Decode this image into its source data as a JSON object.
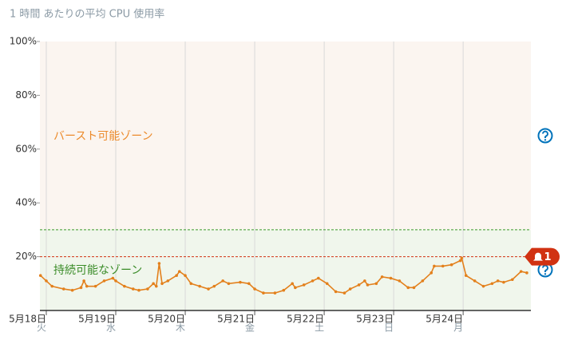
{
  "chart_data": {
    "type": "line",
    "title": "1 時間 あたりの平均 CPU 使用率",
    "series": [
      {
        "name": null,
        "color": "#e3801c",
        "x": [
          -2,
          0,
          2,
          6,
          9,
          12,
          13,
          14,
          17,
          20,
          23,
          24,
          27,
          30,
          32,
          35,
          37,
          38,
          39,
          40,
          42,
          45,
          46,
          48,
          50,
          53,
          56,
          58,
          61,
          63,
          67,
          70,
          72,
          75,
          79,
          82,
          85,
          86,
          89,
          92,
          94,
          97,
          100,
          103,
          105,
          108,
          110,
          111,
          114,
          116,
          119,
          122,
          125,
          127,
          130,
          133,
          134,
          137,
          140,
          143,
          143.5,
          145,
          148,
          151,
          154,
          156,
          158,
          161,
          164,
          166
        ],
        "values": [
          13,
          11,
          9,
          8,
          7.5,
          8.5,
          11,
          9,
          9,
          11,
          12,
          11,
          9,
          8,
          7.5,
          8,
          10,
          9,
          17.5,
          10,
          11,
          13,
          14.5,
          13,
          10,
          9,
          8,
          9,
          11,
          10,
          10.5,
          10,
          8,
          6.5,
          6.5,
          7.5,
          10,
          8.5,
          9.5,
          11,
          12,
          10,
          7,
          6.5,
          8,
          9.5,
          11,
          9.5,
          10,
          12.5,
          12,
          11,
          8.5,
          8.5,
          11,
          14,
          16.5,
          16.5,
          17,
          18.5,
          19.5,
          13,
          11,
          9,
          10,
          11,
          10.5,
          11.5,
          14.5,
          14
        ]
      }
    ],
    "xlim": [
      -2.2,
      167.4
    ],
    "ylim": [
      0,
      100
    ],
    "xticks": [
      {
        "value": 0,
        "label": "5月18日"
      },
      {
        "value": 24,
        "label": "5月19日"
      },
      {
        "value": 48,
        "label": "5月20日"
      },
      {
        "value": 72,
        "label": "5月21日"
      },
      {
        "value": 96,
        "label": "5月22日"
      },
      {
        "value": 120,
        "label": "5月23日"
      },
      {
        "value": 144,
        "label": "5月24日"
      }
    ],
    "weekdays": [
      "火",
      "水",
      "木",
      "金",
      "土",
      "日",
      "月"
    ],
    "yticks": [
      {
        "value": 20,
        "label": "20%"
      },
      {
        "value": 40,
        "label": "40%"
      },
      {
        "value": 60,
        "label": "60%"
      },
      {
        "value": 80,
        "label": "80%"
      },
      {
        "value": 100,
        "label": "100%"
      }
    ],
    "zone_boundary": 30,
    "burst_zone_label": "バースト可能ゾーン",
    "sustained_zone_label": "持続可能なゾーン",
    "alarm_threshold": 20,
    "alarm_count": 1,
    "grid": true
  }
}
